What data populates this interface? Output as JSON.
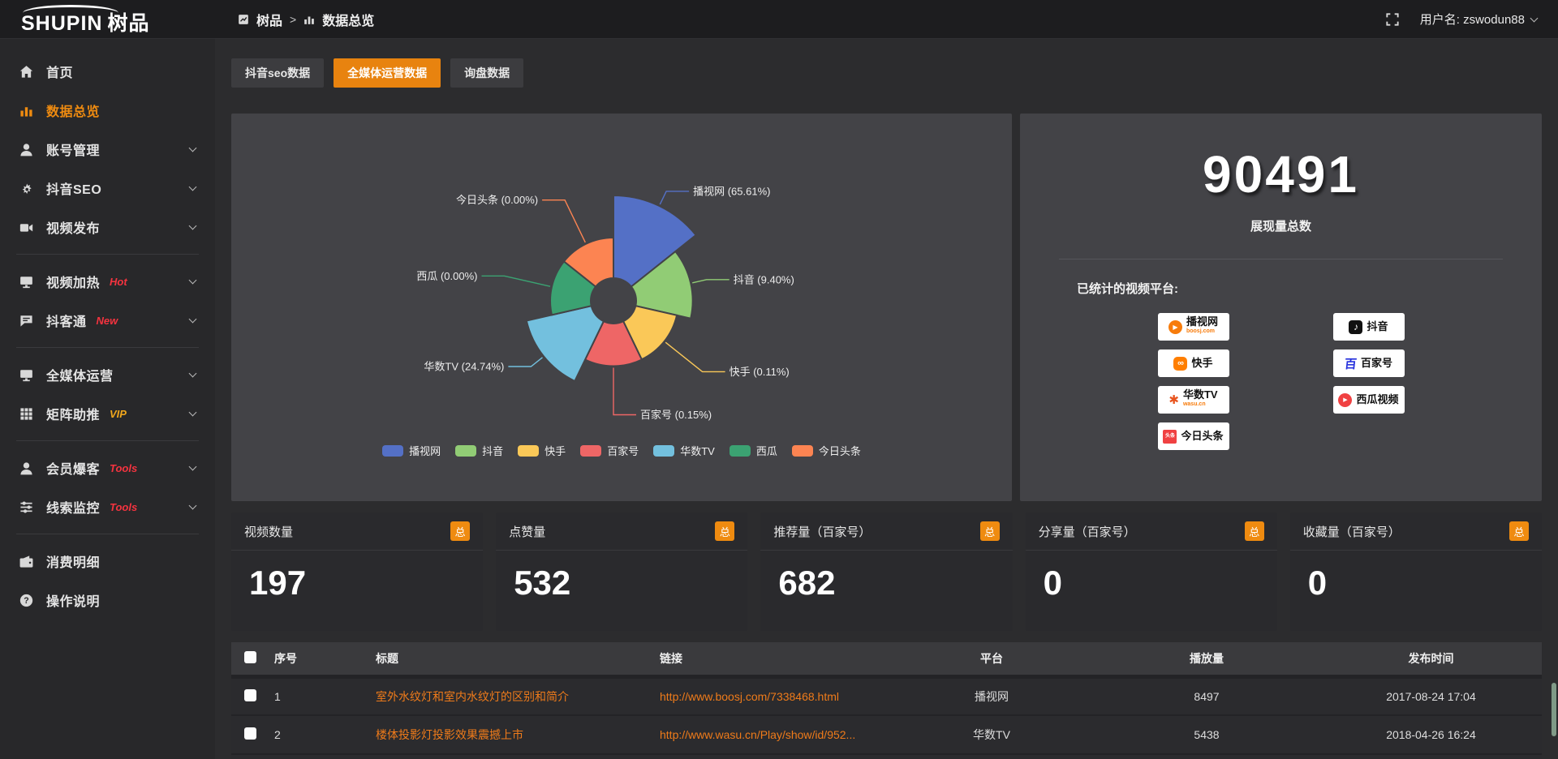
{
  "colors": {
    "accent_orange": "#e8830f",
    "badge_orange": "#ef8b10",
    "link_orange": "#ef7b1a",
    "tag_red": "#f5333f",
    "tag_gold": "#f0a71c",
    "panel_bg": "#434347",
    "card_bg": "#2a2a2d",
    "sidebar_bg": "#28282a",
    "topbar_bg": "#1d1d1f"
  },
  "topbar": {
    "brand_en": "SHUPIN",
    "brand_cn": "树品",
    "breadcrumb": [
      "树品",
      "数据总览"
    ],
    "separator": ">",
    "user_label": "用户名: zswodun88"
  },
  "sidebar": {
    "items": [
      {
        "id": "home",
        "icon": "home",
        "label": "首页",
        "expandable": false,
        "active": false
      },
      {
        "id": "data-overview",
        "icon": "chart",
        "label": "数据总览",
        "expandable": false,
        "active": true
      },
      {
        "id": "account-manage",
        "icon": "user",
        "label": "账号管理",
        "expandable": true,
        "active": false
      },
      {
        "id": "douyin-seo",
        "icon": "gear",
        "label": "抖音SEO",
        "expandable": true,
        "active": false
      },
      {
        "id": "video-publish",
        "icon": "video",
        "label": "视频发布",
        "expandable": true,
        "active": false
      },
      {
        "divider": true
      },
      {
        "id": "video-heat",
        "icon": "monitor",
        "label": "视频加热",
        "tag": "Hot",
        "tag_color": "red",
        "expandable": true,
        "active": false
      },
      {
        "id": "douketong",
        "icon": "chat",
        "label": "抖客通",
        "tag": "New",
        "tag_color": "red",
        "expandable": true,
        "active": false
      },
      {
        "divider": true
      },
      {
        "id": "media-operation",
        "icon": "monitor",
        "label": "全媒体运营",
        "expandable": true,
        "active": false
      },
      {
        "id": "matrix-boost",
        "icon": "grid",
        "label": "矩阵助推",
        "tag": "VIP",
        "tag_color": "gold",
        "expandable": true,
        "active": false
      },
      {
        "divider": true
      },
      {
        "id": "member-baoke",
        "icon": "user",
        "label": "会员爆客",
        "tag": "Tools",
        "tag_color": "red",
        "expandable": true,
        "active": false
      },
      {
        "id": "clue-monitor",
        "icon": "sliders",
        "label": "线索监控",
        "tag": "Tools",
        "tag_color": "red",
        "expandable": true,
        "active": false
      },
      {
        "divider": true
      },
      {
        "id": "consume-detail",
        "icon": "wallet",
        "label": "消费明细",
        "expandable": false,
        "active": false
      },
      {
        "id": "operation-guide",
        "icon": "help",
        "label": "操作说明",
        "expandable": false,
        "active": false
      }
    ]
  },
  "tabs": [
    {
      "label": "抖音seo数据",
      "active": false
    },
    {
      "label": "全媒体运营数据",
      "active": true
    },
    {
      "label": "询盘数据",
      "active": false
    }
  ],
  "chart_data": {
    "type": "pie",
    "variant": "nightingale-rose",
    "title": "",
    "legend_position": "bottom",
    "label_format": "{name} ({value}%)",
    "series": [
      {
        "name": "播视网",
        "pct": 65.61,
        "color": "#5470c6"
      },
      {
        "name": "抖音",
        "pct": 9.4,
        "color": "#91cc75"
      },
      {
        "name": "快手",
        "pct": 0.11,
        "color": "#fac858"
      },
      {
        "name": "百家号",
        "pct": 0.15,
        "color": "#ee6666"
      },
      {
        "name": "华数TV",
        "pct": 24.74,
        "color": "#73c0de"
      },
      {
        "name": "西瓜",
        "pct": 0.0,
        "color": "#3ba272"
      },
      {
        "name": "今日头条",
        "pct": 0.0,
        "color": "#fc8452"
      }
    ]
  },
  "summary": {
    "total_value": "90491",
    "total_label": "展现量总数",
    "platforms_title": "已统计的视频平台:",
    "platforms": [
      {
        "name": "播视网",
        "sub": "boosj.com",
        "icon": "boosj"
      },
      {
        "name": "抖音",
        "icon": "douyin"
      },
      {
        "name": "快手",
        "icon": "kuaishou"
      },
      {
        "name": "百家号",
        "icon": "baijia"
      },
      {
        "name": "华数TV",
        "sub": "wasu.cn",
        "icon": "wasu"
      },
      {
        "name": "西瓜视频",
        "icon": "xigua"
      },
      {
        "name": "今日头条",
        "icon": "toutiao"
      }
    ]
  },
  "stat_cards": [
    {
      "title": "视频数量",
      "badge": "总",
      "value": "197"
    },
    {
      "title": "点赞量",
      "badge": "总",
      "value": "532"
    },
    {
      "title": "推荐量（百家号）",
      "badge": "总",
      "value": "682"
    },
    {
      "title": "分享量（百家号）",
      "badge": "总",
      "value": "0"
    },
    {
      "title": "收藏量（百家号）",
      "badge": "总",
      "value": "0"
    }
  ],
  "table": {
    "headers": [
      "序号",
      "标题",
      "链接",
      "平台",
      "播放量",
      "发布时间"
    ],
    "rows": [
      {
        "no": "1",
        "title": "室外水纹灯和室内水纹灯的区别和简介",
        "link": "http://www.boosj.com/7338468.html",
        "platform": "播视网",
        "plays": "8497",
        "time": "2017-08-24 17:04"
      },
      {
        "no": "2",
        "title": "楼体投影灯投影效果震撼上市",
        "link": "http://www.wasu.cn/Play/show/id/952...",
        "platform": "华数TV",
        "plays": "5438",
        "time": "2018-04-26 16:24"
      }
    ]
  }
}
